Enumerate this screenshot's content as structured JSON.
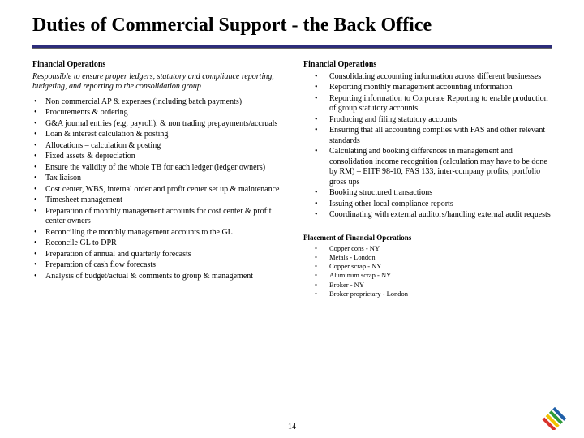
{
  "title": "Duties of Commercial Support - the Back Office",
  "pageNumber": "14",
  "colors": {
    "rule": "#2c2c7a",
    "text": "#000000",
    "background": "#ffffff",
    "logoBlue": "#1f5fa8",
    "logoGreen": "#2e9b3a",
    "logoYellow": "#f2c200",
    "logoRed": "#d9332b"
  },
  "left": {
    "heading": "Financial Operations",
    "sub": "Responsible to ensure proper ledgers, statutory and compliance reporting, budgeting, and reporting to the consolidation group",
    "items": [
      "Non commercial AP & expenses (including batch payments)",
      "Procurements & ordering",
      "G&A journal entries (e.g. payroll), & non trading prepayments/accruals",
      "Loan & interest calculation & posting",
      "Allocations – calculation & posting",
      "Fixed assets & depreciation",
      "Ensure the validity of the whole TB for each ledger (ledger owners)",
      "Tax liaison",
      "Cost center, WBS, internal order and profit center set up & maintenance",
      "Timesheet management",
      "Preparation of monthly management accounts for cost center & profit center owners",
      "Reconciling the monthly management accounts to the GL",
      "Reconcile GL to DPR",
      "Preparation of annual and quarterly forecasts",
      "Preparation of cash flow forecasts",
      "Analysis of budget/actual & comments to group & management"
    ]
  },
  "right": {
    "heading": "Financial Operations",
    "items": [
      "Consolidating accounting information across different businesses",
      "Reporting monthly management accounting information",
      "Reporting information to Corporate Reporting to enable production of group statutory accounts",
      "Producing and filing statutory accounts",
      "Ensuring that all accounting complies with FAS and other relevant standards",
      "Calculating and booking differences in management and consolidation income recognition (calculation may have to be done by RM) – EITF 98-10, FAS 133, inter-company profits, portfolio gross ups",
      "Booking structured transactions",
      "Issuing other local compliance reports",
      "Coordinating with external auditors/handling external audit requests"
    ],
    "placementHeading": "Placement of Financial Operations",
    "placement": [
      "Copper cons - NY",
      "Metals - London",
      "Copper scrap - NY",
      "Aluminum scrap - NY",
      "Broker - NY",
      "Broker proprietary - London"
    ]
  }
}
